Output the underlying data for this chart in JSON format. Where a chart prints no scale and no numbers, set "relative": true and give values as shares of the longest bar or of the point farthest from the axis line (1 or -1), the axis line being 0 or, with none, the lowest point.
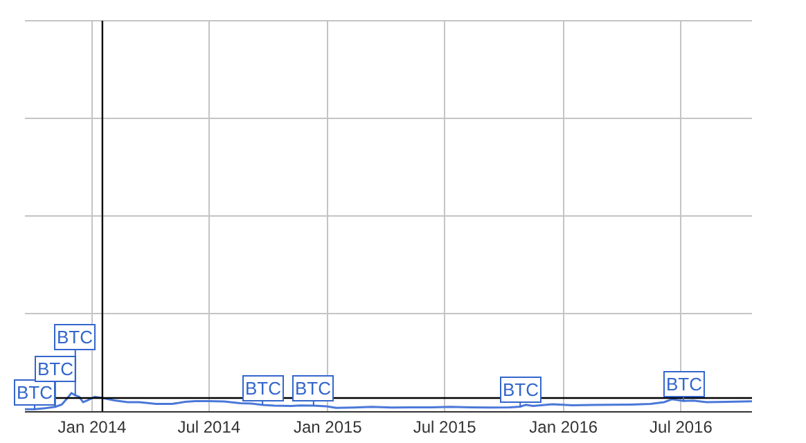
{
  "chart_data": {
    "type": "line",
    "relative": true,
    "x": [
      "2013-09-19",
      "2013-10-04",
      "2013-10-20",
      "2013-11-05",
      "2013-11-15",
      "2013-11-22",
      "2013-11-30",
      "2013-12-06",
      "2013-12-12",
      "2013-12-18",
      "2013-12-25",
      "2014-01-05",
      "2014-01-17",
      "2014-02-05",
      "2014-02-25",
      "2014-03-15",
      "2014-04-10",
      "2014-05-05",
      "2014-05-25",
      "2014-06-10",
      "2014-07-01",
      "2014-07-25",
      "2014-08-18",
      "2014-09-05",
      "2014-09-22",
      "2014-10-10",
      "2014-11-05",
      "2014-11-20",
      "2014-12-10",
      "2014-12-30",
      "2015-01-14",
      "2015-02-10",
      "2015-03-10",
      "2015-04-10",
      "2015-05-10",
      "2015-06-10",
      "2015-07-10",
      "2015-08-10",
      "2015-09-10",
      "2015-10-10",
      "2015-10-26",
      "2015-11-04",
      "2015-11-15",
      "2015-12-15",
      "2016-01-15",
      "2016-02-15",
      "2016-03-15",
      "2016-04-15",
      "2016-05-15",
      "2016-06-05",
      "2016-06-17",
      "2016-07-05",
      "2016-07-20",
      "2016-08-10",
      "2016-09-10",
      "2016-10-19"
    ],
    "series": [
      {
        "color": "#4a78d8",
        "values": [
          0.11,
          0.11,
          0.16,
          0.24,
          0.37,
          0.65,
          1.0,
          0.88,
          0.8,
          0.5,
          0.6,
          0.8,
          0.73,
          0.6,
          0.5,
          0.5,
          0.4,
          0.4,
          0.52,
          0.56,
          0.56,
          0.54,
          0.44,
          0.42,
          0.35,
          0.31,
          0.29,
          0.32,
          0.31,
          0.27,
          0.18,
          0.2,
          0.24,
          0.2,
          0.21,
          0.21,
          0.24,
          0.21,
          0.2,
          0.21,
          0.25,
          0.35,
          0.29,
          0.38,
          0.33,
          0.35,
          0.36,
          0.37,
          0.4,
          0.5,
          0.66,
          0.57,
          0.59,
          0.5,
          0.52,
          0.55
        ]
      }
    ],
    "xlim": [
      "2013-09-19",
      "2016-10-19"
    ],
    "xticks": [
      {
        "value": "2014-01-01",
        "label": "Jan 2014"
      },
      {
        "value": "2014-07-01",
        "label": "Jul 2014"
      },
      {
        "value": "2015-01-01",
        "label": "Jan 2015"
      },
      {
        "value": "2015-07-01",
        "label": "Jul 2015"
      },
      {
        "value": "2016-01-01",
        "label": "Jan 2016"
      },
      {
        "value": "2016-07-01",
        "label": "Jul 2016"
      }
    ],
    "grid": true,
    "marker": "none",
    "line_style": "solid",
    "ref_lines": [
      {
        "axis": "x",
        "value": "2014-01-17",
        "color": "#000000"
      },
      {
        "axis": "y",
        "value": 0.73,
        "color": "#000000"
      }
    ],
    "annotations": [
      {
        "text": "BTC",
        "x": "2013-10-04",
        "y": 0.11
      },
      {
        "text": "BTC",
        "x": "2013-11-05",
        "y": 0.24
      },
      {
        "text": "BTC",
        "x": "2013-12-06",
        "y": 0.88
      },
      {
        "text": "BTC",
        "x": "2014-09-22",
        "y": 0.35
      },
      {
        "text": "BTC",
        "x": "2014-12-10",
        "y": 0.31
      },
      {
        "text": "BTC",
        "x": "2015-10-26",
        "y": 0.25
      },
      {
        "text": "BTC",
        "x": "2016-07-05",
        "y": 0.57
      }
    ]
  }
}
